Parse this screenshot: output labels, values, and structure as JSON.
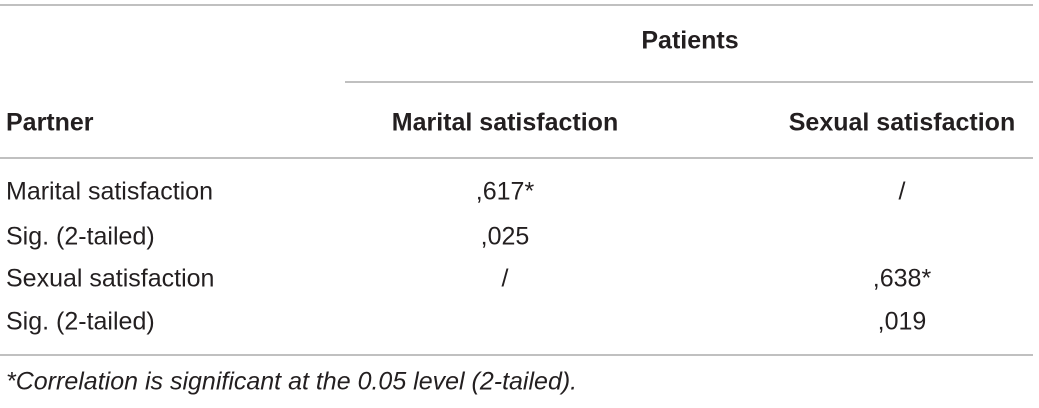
{
  "table": {
    "group_header": "Patients",
    "columns": [
      "Partner",
      "Marital satisfaction",
      "Sexual satisfaction"
    ],
    "rows": [
      [
        "Marital satisfaction",
        ",617*",
        "/"
      ],
      [
        "Sig. (2-tailed)",
        ",025",
        null
      ],
      [
        "Sexual satisfaction",
        "/",
        ",638*"
      ],
      [
        "Sig. (2-tailed)",
        null,
        ",019"
      ]
    ]
  },
  "footnote": "*Correlation is significant at the 0.05 level (2-tailed)."
}
